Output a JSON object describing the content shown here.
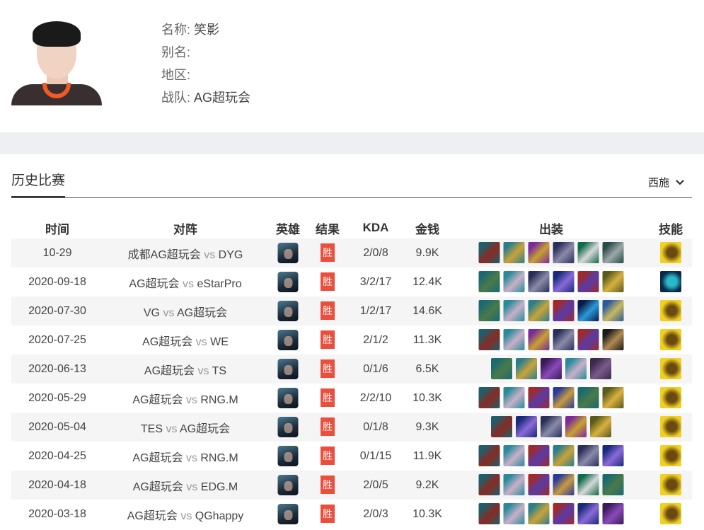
{
  "player": {
    "name_label": "名称:",
    "name": "笑影",
    "alias_label": "别名:",
    "alias": "",
    "region_label": "地区:",
    "region": "",
    "team_label": "战队:",
    "team": "AG超玩会"
  },
  "section": {
    "title": "历史比赛",
    "hero_filter": "西施"
  },
  "table": {
    "headers": [
      "时间",
      "对阵",
      "英雄",
      "结果",
      "KDA",
      "金钱",
      "出装",
      "技能"
    ],
    "rows": [
      {
        "date": "10-29",
        "home": "成都AG超玩会",
        "vs": "vs",
        "away": "DYG",
        "result": "胜",
        "kda": "2/0/8",
        "gold": "9.9K",
        "items": [
          "A",
          "B",
          "C",
          "D",
          "E",
          "F"
        ],
        "skill": "gold"
      },
      {
        "date": "2020-09-18",
        "home": "AG超玩会",
        "vs": "vs",
        "away": "eStarPro",
        "result": "胜",
        "kda": "3/2/17",
        "gold": "12.4K",
        "items": [
          "G",
          "H",
          "D",
          "I",
          "J",
          "K"
        ],
        "skill": "teal"
      },
      {
        "date": "2020-07-30",
        "home": "VG",
        "vs": "vs",
        "away": "AG超玩会",
        "result": "胜",
        "kda": "1/2/17",
        "gold": "14.6K",
        "items": [
          "G",
          "H",
          "B",
          "J",
          "L",
          "M"
        ],
        "skill": "gold"
      },
      {
        "date": "2020-07-25",
        "home": "AG超玩会",
        "vs": "vs",
        "away": "WE",
        "result": "胜",
        "kda": "2/1/2",
        "gold": "11.3K",
        "items": [
          "A",
          "H",
          "C",
          "D",
          "J",
          "N"
        ],
        "skill": "gold"
      },
      {
        "date": "2020-06-13",
        "home": "AG超玩会",
        "vs": "vs",
        "away": "TS",
        "result": "胜",
        "kda": "0/1/6",
        "gold": "6.5K",
        "items": [
          "G",
          "B",
          "O",
          "H",
          "P"
        ],
        "skill": "gold"
      },
      {
        "date": "2020-05-29",
        "home": "AG超玩会",
        "vs": "vs",
        "away": "RNG.M",
        "result": "胜",
        "kda": "2/2/10",
        "gold": "10.3K",
        "items": [
          "A",
          "H",
          "J",
          "Q",
          "G",
          "K"
        ],
        "skill": "gold"
      },
      {
        "date": "2020-05-04",
        "home": "TES",
        "vs": "vs",
        "away": "AG超玩会",
        "result": "胜",
        "kda": "0/1/8",
        "gold": "9.3K",
        "items": [
          "A",
          "I",
          "D",
          "C",
          "K"
        ],
        "skill": "gold"
      },
      {
        "date": "2020-04-25",
        "home": "AG超玩会",
        "vs": "vs",
        "away": "RNG.M",
        "result": "胜",
        "kda": "0/1/15",
        "gold": "11.9K",
        "items": [
          "A",
          "H",
          "J",
          "B",
          "D",
          "I"
        ],
        "skill": "gold"
      },
      {
        "date": "2020-04-18",
        "home": "AG超玩会",
        "vs": "vs",
        "away": "EDG.M",
        "result": "胜",
        "kda": "2/0/5",
        "gold": "9.2K",
        "items": [
          "A",
          "H",
          "J",
          "Q",
          "E",
          "G"
        ],
        "skill": "gold"
      },
      {
        "date": "2020-03-18",
        "home": "AG超玩会",
        "vs": "vs",
        "away": "QGhappy",
        "result": "胜",
        "kda": "2/0/3",
        "gold": "10.3K",
        "items": [
          "A",
          "H",
          "B",
          "J",
          "I",
          "O"
        ],
        "skill": "gold"
      }
    ]
  },
  "colors": {
    "win": "#ea4e3d",
    "band": "#eeeff2",
    "stripe": "#f5f5f5"
  }
}
